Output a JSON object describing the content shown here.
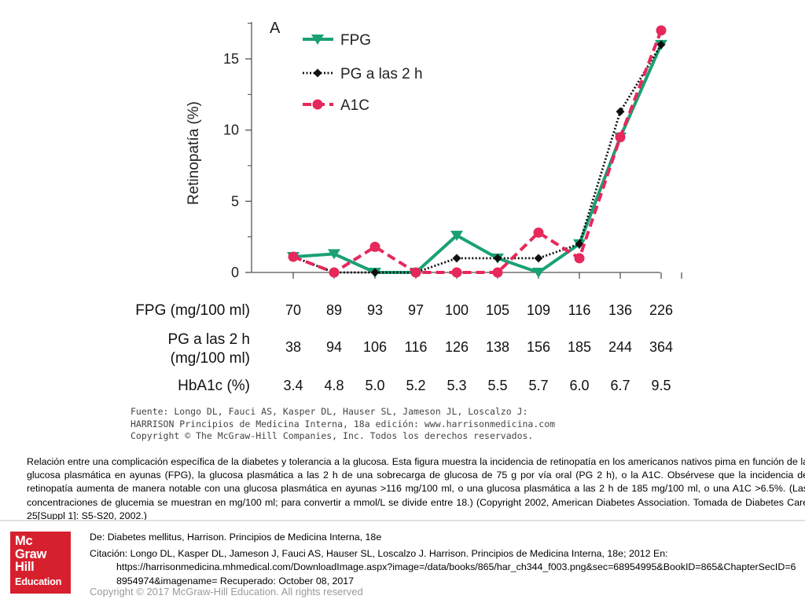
{
  "chart_data": {
    "type": "line",
    "panel_label": "A",
    "ylabel": "Retinopatía (%)",
    "ylim": [
      0,
      17.5
    ],
    "yticks": [
      "0",
      "5",
      "10",
      "15"
    ],
    "categories_count": 10,
    "legend_position": "top-left",
    "grid": false,
    "series": [
      {
        "name": "FPG",
        "color": "#1aa174",
        "style": "solid",
        "marker": "triangle-down",
        "values": [
          1.1,
          1.3,
          0.0,
          0.0,
          2.6,
          1.0,
          0.0,
          2.0,
          9.5,
          16.0
        ]
      },
      {
        "name": "PG a las 2 h",
        "color": "#111111",
        "style": "dotted",
        "marker": "diamond",
        "values": [
          1.1,
          0.0,
          0.0,
          0.0,
          1.0,
          1.0,
          1.0,
          2.0,
          11.3,
          16.0
        ]
      },
      {
        "name": "A1C",
        "color": "#e6285a",
        "style": "dashed",
        "marker": "circle",
        "values": [
          1.1,
          0.0,
          1.8,
          0.0,
          0.0,
          0.0,
          2.8,
          1.0,
          9.5,
          17.0
        ]
      }
    ],
    "table": [
      {
        "label_lines": [
          "FPG (mg/100 ml)"
        ],
        "values": [
          "70",
          "89",
          "93",
          "97",
          "100",
          "105",
          "109",
          "116",
          "136",
          "226"
        ]
      },
      {
        "label_lines": [
          "PG a las 2 h",
          "(mg/100 ml)"
        ],
        "values": [
          "38",
          "94",
          "106",
          "116",
          "126",
          "138",
          "156",
          "185",
          "244",
          "364"
        ]
      },
      {
        "label_lines": [
          "HbA1c (%)"
        ],
        "values": [
          "3.4",
          "4.8",
          "5.0",
          "5.2",
          "5.3",
          "5.5",
          "5.7",
          "6.0",
          "6.7",
          "9.5"
        ]
      }
    ]
  },
  "source": {
    "line1": "Fuente: Longo DL, Fauci AS, Kasper DL, Hauser SL, Jameson JL, Loscalzo J:",
    "line2": "HARRISON Principios de Medicina Interna, 18a edición: www.harrisonmedicina.com",
    "line3": "Copyright © The McGraw-Hill Companies, Inc. Todos los derechos reservados."
  },
  "caption": "Relación entre una complicación específica de la diabetes y tolerancia a la glucosa. Esta figura muestra la incidencia de retinopatía en los americanos nativos pima en función de la glucosa plasmática en ayunas (FPG), la glucosa plasmática a las 2 h de una sobrecarga de glucosa de 75 g por vía oral (PG 2 h), o la A1C. Obsérvese que la incidencia de retinopatía aumenta de manera notable con una glucosa plasmática en ayunas >116 mg/100 ml, o una glucosa plasmática a las 2 h de 185 mg/100 ml, o una A1C >6.5%. (Las concentraciones de glucemia se muestran en mg/100 ml; para convertir a mmol/L se divide entre 18.) (Copyright 2002, American Diabetes Association. Tomada de Diabetes Care 25[Suppl 1]: S5-S20, 2002.)",
  "logo": {
    "line1": "Mc",
    "line2": "Graw",
    "line3": "Hill",
    "line4": "Education"
  },
  "citation": {
    "de": "De: Diabetes mellitus, Harrison. Principios de Medicina Interna, 18e",
    "citacion": "Citación: Longo DL, Kasper DL, Jameson J, Fauci AS, Hauser SL, Loscalzo J. Harrison. Principios de Medicina Interna, 18e; 2012 En:",
    "url": "https://harrisonmedicina.mhmedical.com/DownloadImage.aspx?image=/data/books/865/har_ch344_f003.png&sec=68954995&BookID=865&ChapterSecID=68954974&imagename= Recuperado: October 08, 2017"
  },
  "copyright": "Copyright © 2017 McGraw-Hill Education. All rights reserved"
}
